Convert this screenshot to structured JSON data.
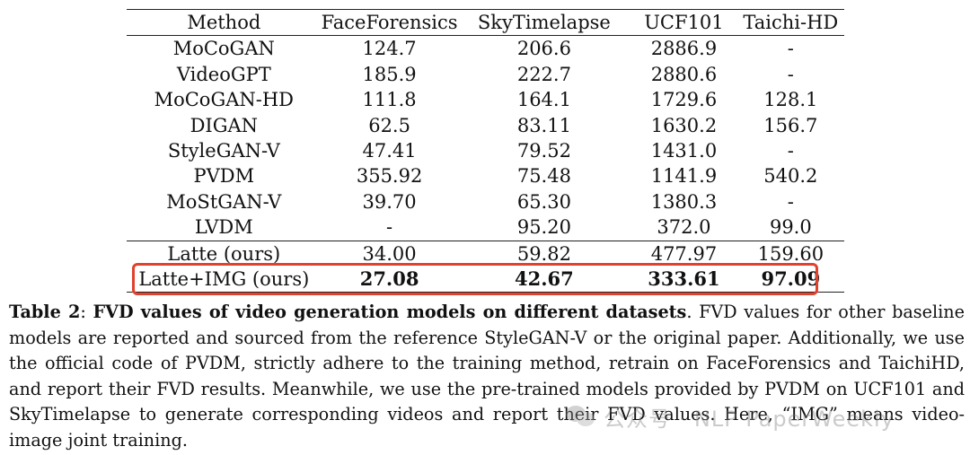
{
  "table": {
    "headers": [
      "Method",
      "FaceForensics",
      "SkyTimelapse",
      "UCF101",
      "Taichi-HD"
    ],
    "rows": [
      [
        "MoCoGAN",
        "124.7",
        "206.6",
        "2886.9",
        "-"
      ],
      [
        "VideoGPT",
        "185.9",
        "222.7",
        "2880.6",
        "-"
      ],
      [
        "MoCoGAN-HD",
        "111.8",
        "164.1",
        "1729.6",
        "128.1"
      ],
      [
        "DIGAN",
        "62.5",
        "83.11",
        "1630.2",
        "156.7"
      ],
      [
        "StyleGAN-V",
        "47.41",
        "79.52",
        "1431.0",
        "-"
      ],
      [
        "PVDM",
        "355.92",
        "75.48",
        "1141.9",
        "540.2"
      ],
      [
        "MoStGAN-V",
        "39.70",
        "65.30",
        "1380.3",
        "-"
      ],
      [
        "LVDM",
        "-",
        "95.20",
        "372.0",
        "99.0"
      ],
      [
        "Latte (ours)",
        "34.00",
        "59.82",
        "477.97",
        "159.60"
      ],
      [
        "Latte+IMG (ours)",
        "27.08",
        "42.67",
        "333.61",
        "97.09"
      ]
    ]
  },
  "caption": {
    "label": "Table 2",
    "colon": ": ",
    "title": "FVD values of video generation models on different datasets",
    "body": ". FVD values for other baseline models are reported and sourced from the reference StyleGAN-V or the original paper. Additionally, we use the official code of PVDM, strictly adhere to the training method, retrain on FaceForensics and TaichiHD, and report their FVD results. Meanwhile, we use the pre-trained models provided by PVDM on UCF101 and SkyTimelapse to generate corresponding videos and report their FVD values. Here, “IMG” means video-image joint training."
  },
  "watermark": {
    "text": "公众号 · NLP PaperWeekly"
  },
  "colors": {
    "highlight_border": "#e0422e"
  }
}
